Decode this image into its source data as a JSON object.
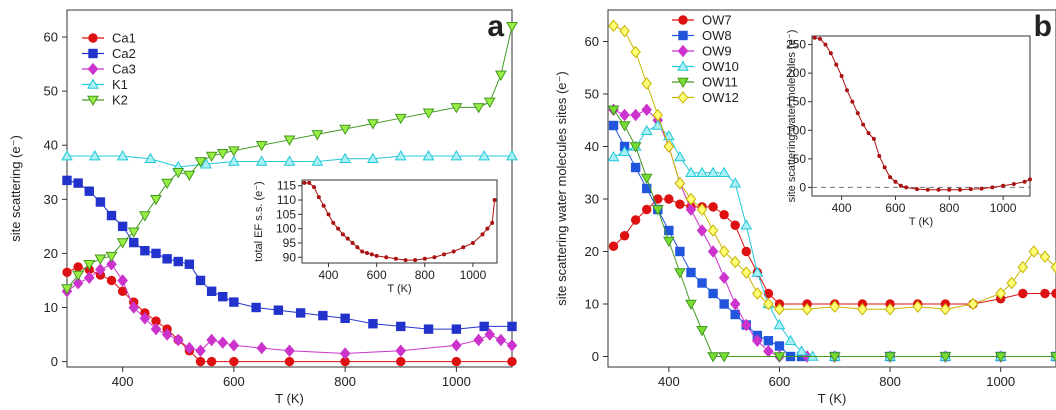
{
  "chart_data": [
    {
      "type": "line",
      "panel_label": "a",
      "xlabel": "T (K)",
      "ylabel": "site scattering (e⁻)",
      "xlim": [
        300,
        1100
      ],
      "ylim": [
        -1,
        65
      ],
      "xticks": [
        400,
        600,
        800,
        1000
      ],
      "yticks": [
        0,
        10,
        20,
        30,
        40,
        50,
        60
      ],
      "legend_position": "top-left",
      "series": [
        {
          "name": "Ca1",
          "color": "#dd1111",
          "marker": "circle",
          "x": [
            300,
            320,
            340,
            360,
            380,
            400,
            420,
            440,
            460,
            480,
            500,
            520,
            540,
            560,
            600,
            700,
            800,
            900,
            1000,
            1100
          ],
          "y": [
            16.5,
            17.5,
            17,
            16,
            15,
            13,
            11,
            9,
            7.5,
            6,
            4,
            2,
            0,
            0,
            0,
            0,
            0,
            0,
            0,
            0
          ]
        },
        {
          "name": "Ca2",
          "color": "#2233cc",
          "marker": "square",
          "x": [
            300,
            320,
            340,
            360,
            380,
            400,
            420,
            440,
            460,
            480,
            500,
            520,
            540,
            560,
            580,
            600,
            640,
            680,
            720,
            760,
            800,
            850,
            900,
            950,
            1000,
            1050,
            1100
          ],
          "y": [
            33.5,
            33,
            31.5,
            29.5,
            27,
            25,
            22,
            20.5,
            20,
            19,
            18.5,
            18,
            15,
            13,
            12,
            11,
            10,
            9.5,
            9,
            8.5,
            8,
            7,
            6.5,
            6,
            6,
            6.5,
            6.5
          ]
        },
        {
          "name": "Ca3",
          "color": "#cc33cc",
          "marker": "diamond",
          "x": [
            300,
            320,
            340,
            360,
            380,
            400,
            420,
            440,
            460,
            480,
            500,
            520,
            540,
            560,
            580,
            600,
            650,
            700,
            800,
            900,
            1000,
            1040,
            1060,
            1080,
            1100
          ],
          "y": [
            13,
            14.5,
            15.5,
            17,
            18,
            15,
            10,
            8,
            6,
            5,
            4,
            2.5,
            2,
            4,
            3.5,
            3,
            2.5,
            2,
            1.5,
            2,
            3,
            4,
            5,
            4,
            3
          ]
        },
        {
          "name": "K1",
          "color": "#22c8d8",
          "fill": "#aaf0f4",
          "marker": "triangle-up",
          "x": [
            300,
            350,
            400,
            450,
            500,
            550,
            600,
            650,
            700,
            750,
            800,
            850,
            900,
            950,
            1000,
            1050,
            1100
          ],
          "y": [
            38,
            38,
            38,
            37.5,
            36,
            36.5,
            37,
            37,
            37,
            37,
            37.5,
            37.5,
            38,
            38,
            38,
            38,
            38
          ]
        },
        {
          "name": "K2",
          "color": "#449922",
          "fill": "#99ee44",
          "marker": "triangle-down",
          "x": [
            300,
            320,
            340,
            360,
            380,
            400,
            420,
            440,
            460,
            480,
            500,
            520,
            540,
            560,
            580,
            600,
            650,
            700,
            750,
            800,
            850,
            900,
            950,
            1000,
            1040,
            1060,
            1080,
            1100
          ],
          "y": [
            13.5,
            16,
            18,
            19,
            19.5,
            22,
            24,
            27,
            30,
            33,
            35,
            34.5,
            37,
            38,
            38.5,
            39,
            40,
            41,
            42,
            43,
            44,
            45,
            46,
            47,
            47,
            48,
            53,
            62
          ]
        }
      ],
      "inset": {
        "xlabel": "T (K)",
        "ylabel": "total EF s.s. (e⁻)",
        "xlim": [
          290,
          1100
        ],
        "ylim": [
          88,
          117
        ],
        "xticks": [
          400,
          600,
          800,
          1000
        ],
        "yticks": [
          90,
          95,
          100,
          105,
          110,
          115
        ],
        "color": "#aa1111",
        "x": [
          300,
          320,
          340,
          360,
          380,
          400,
          420,
          440,
          460,
          480,
          500,
          520,
          540,
          560,
          580,
          600,
          640,
          680,
          720,
          760,
          800,
          840,
          880,
          920,
          960,
          1000,
          1040,
          1060,
          1080,
          1090
        ],
        "y": [
          116,
          116,
          114.5,
          111,
          108,
          105,
          102,
          100,
          98,
          96.5,
          95,
          93.5,
          92,
          91.5,
          91,
          90.5,
          90,
          89.5,
          89,
          89,
          89.5,
          90,
          91,
          92,
          93.5,
          95,
          98,
          100,
          102,
          110
        ]
      }
    },
    {
      "type": "line",
      "panel_label": "b",
      "xlabel": "T (K)",
      "ylabel": "site scattering water molecules sites (e⁻)",
      "xlim": [
        290,
        1100
      ],
      "ylim": [
        -2,
        66
      ],
      "xticks": [
        400,
        600,
        800,
        1000
      ],
      "yticks": [
        0,
        10,
        20,
        30,
        40,
        50,
        60
      ],
      "legend_position": "top-left",
      "series": [
        {
          "name": "OW7",
          "color": "#dd1111",
          "marker": "circle",
          "x": [
            300,
            320,
            340,
            360,
            380,
            400,
            420,
            440,
            460,
            480,
            500,
            520,
            540,
            560,
            580,
            600,
            650,
            700,
            750,
            800,
            850,
            900,
            950,
            1000,
            1040,
            1080,
            1100
          ],
          "y": [
            21,
            23,
            26,
            28,
            30,
            30,
            29,
            28.5,
            28.5,
            28.5,
            27,
            25,
            20,
            16,
            12,
            10,
            10,
            10,
            10,
            10,
            10,
            10,
            10,
            11,
            12,
            12,
            12
          ]
        },
        {
          "name": "OW8",
          "color": "#2255dd",
          "marker": "square",
          "x": [
            300,
            320,
            340,
            360,
            380,
            400,
            420,
            440,
            460,
            480,
            500,
            520,
            540,
            560,
            580,
            600,
            620,
            640,
            700,
            800,
            900,
            1000,
            1100
          ],
          "y": [
            44,
            40,
            36,
            32,
            28,
            24,
            20,
            16,
            14,
            12,
            10,
            8,
            6,
            4,
            3,
            2,
            0,
            0,
            0,
            0,
            0,
            0,
            0
          ]
        },
        {
          "name": "OW9",
          "color": "#cc33cc",
          "marker": "diamond",
          "x": [
            300,
            320,
            340,
            360,
            380,
            400,
            420,
            440,
            460,
            480,
            500,
            520,
            540,
            560,
            580,
            600,
            650,
            700,
            800,
            900,
            1000,
            1100
          ],
          "y": [
            47,
            46,
            46,
            47,
            45,
            40,
            33,
            28,
            24,
            20,
            15,
            10,
            6,
            3,
            1,
            0,
            0,
            0,
            0,
            0,
            0,
            0
          ]
        },
        {
          "name": "OW10",
          "color": "#22c8d8",
          "fill": "#aaf0f4",
          "marker": "triangle-up",
          "x": [
            300,
            320,
            340,
            360,
            380,
            400,
            420,
            440,
            460,
            480,
            500,
            520,
            540,
            560,
            580,
            600,
            620,
            640,
            660,
            700,
            800,
            900,
            1000,
            1100
          ],
          "y": [
            38,
            39,
            40,
            43,
            44,
            42,
            38,
            35,
            35,
            35,
            35,
            33,
            25,
            16,
            10,
            6,
            3,
            1,
            0,
            0,
            0,
            0,
            0,
            0
          ]
        },
        {
          "name": "OW11",
          "color": "#449922",
          "fill": "#77dd33",
          "marker": "triangle-down",
          "x": [
            300,
            320,
            340,
            360,
            380,
            400,
            420,
            440,
            460,
            480,
            500,
            600,
            700,
            800,
            900,
            1000,
            1100
          ],
          "y": [
            47,
            44,
            40,
            34,
            28,
            22,
            16,
            10,
            5,
            0,
            0,
            0,
            0,
            0,
            0,
            0,
            0
          ]
        },
        {
          "name": "OW12",
          "color": "#c8b400",
          "fill": "#ffff77",
          "marker": "diamond",
          "x": [
            300,
            320,
            340,
            360,
            380,
            400,
            420,
            440,
            460,
            480,
            500,
            520,
            540,
            560,
            580,
            600,
            650,
            700,
            750,
            800,
            850,
            900,
            950,
            1000,
            1020,
            1040,
            1060,
            1080,
            1100
          ],
          "y": [
            63,
            62,
            58,
            52,
            46,
            40,
            33,
            30,
            28,
            24,
            20,
            18,
            16,
            12,
            10,
            9,
            9,
            9.5,
            9,
            9,
            9.5,
            9,
            10,
            12,
            14,
            17,
            20,
            19,
            17
          ]
        }
      ],
      "inset": {
        "xlabel": "T (K)",
        "ylabel": "site scattering water molecules (e⁻)",
        "xlim": [
          290,
          1100
        ],
        "ylim": [
          -15,
          265
        ],
        "xticks": [
          400,
          600,
          800,
          1000
        ],
        "yticks": [
          0,
          50,
          100,
          150,
          200,
          250
        ],
        "color": "#aa1111",
        "zero_line": true,
        "x": [
          300,
          320,
          340,
          360,
          380,
          400,
          420,
          440,
          460,
          480,
          500,
          520,
          540,
          560,
          580,
          600,
          620,
          640,
          680,
          720,
          760,
          800,
          840,
          880,
          920,
          960,
          1000,
          1040,
          1080,
          1100
        ],
        "y": [
          262,
          260,
          250,
          235,
          215,
          195,
          170,
          150,
          130,
          110,
          95,
          85,
          55,
          35,
          18,
          10,
          3,
          0,
          -3,
          -4,
          -4,
          -4,
          -4,
          -3,
          -2,
          0,
          3,
          6,
          10,
          14
        ]
      }
    }
  ]
}
